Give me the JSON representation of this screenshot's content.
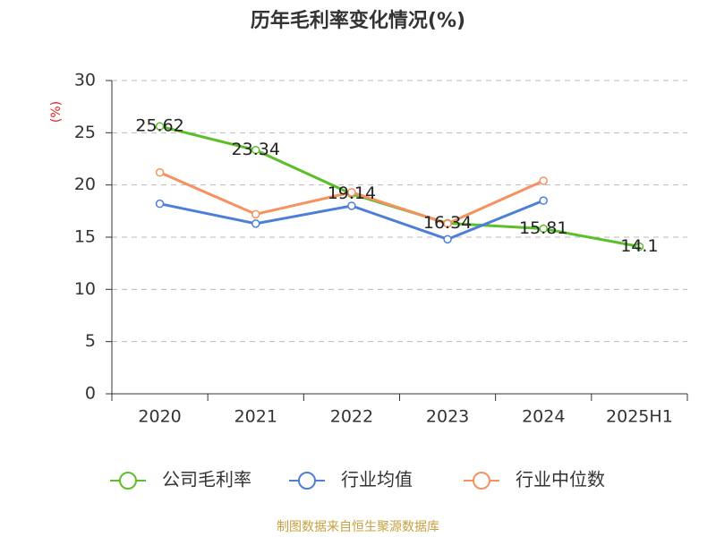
{
  "chart_data": {
    "type": "line",
    "title": "历年毛利率变化情况(%)",
    "y_label": "(%)",
    "categories": [
      "2020",
      "2021",
      "2022",
      "2023",
      "2024",
      "2025H1"
    ],
    "series": [
      {
        "name": "公司毛利率",
        "color": "#5cbf2a",
        "values": [
          25.62,
          23.34,
          19.14,
          16.34,
          15.81,
          14.1
        ],
        "show_labels": true
      },
      {
        "name": "行业均值",
        "color": "#4d7fd9",
        "values": [
          18.2,
          16.3,
          18.0,
          14.8,
          18.5,
          null
        ]
      },
      {
        "name": "行业中位数",
        "color": "#f59262",
        "values": [
          21.2,
          17.2,
          19.3,
          16.3,
          20.4,
          null
        ]
      }
    ],
    "ylim": [
      0,
      30
    ],
    "yticks": [
      0,
      5,
      10,
      15,
      20,
      25,
      30
    ],
    "grid": true,
    "source": "制图数据来自恒生聚源数据库"
  }
}
